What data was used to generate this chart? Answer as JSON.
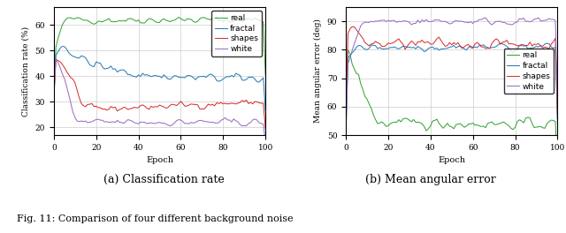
{
  "left_plot": {
    "ylabel": "Classification rate (%)",
    "xlabel": "Epoch",
    "xlim": [
      0,
      100
    ],
    "ylim": [
      17,
      67
    ],
    "yticks": [
      20,
      30,
      40,
      50,
      60
    ],
    "xticks": [
      0,
      20,
      40,
      60,
      80,
      100
    ],
    "caption": "(a) Classification rate",
    "legend_loc": "upper right"
  },
  "right_plot": {
    "ylabel": "Mean angular error (deg)",
    "xlabel": "Epoch",
    "xlim": [
      0,
      100
    ],
    "ylim": [
      50,
      95
    ],
    "yticks": [
      50,
      60,
      70,
      80,
      90
    ],
    "xticks": [
      0,
      20,
      40,
      60,
      80,
      100
    ],
    "caption": "(b) Mean angular error",
    "legend_loc": "center right"
  },
  "legend_labels": [
    "real",
    "fractal",
    "shapes",
    "white"
  ],
  "legend_colors": [
    "#2ca02c",
    "#1f77b4",
    "#d62728",
    "#9467bd"
  ],
  "fig_caption": "Fig. 11: Comparison of four different background noise"
}
